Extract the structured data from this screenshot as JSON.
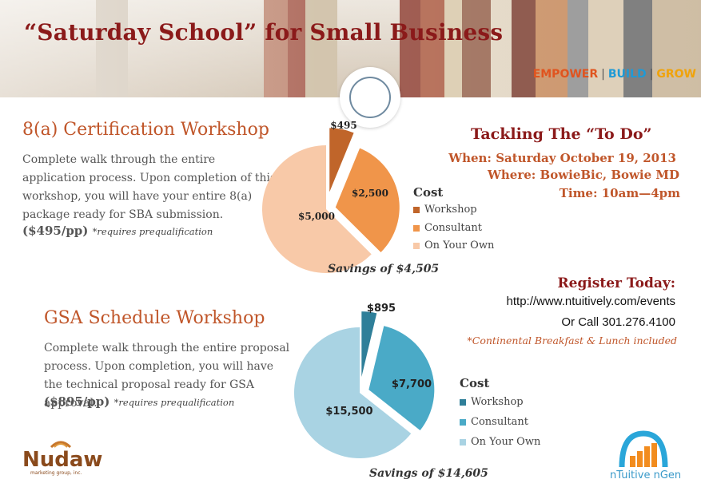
{
  "header": {
    "title": "“Saturday School” for Small Business",
    "tagline": {
      "empower": "EMPOWER",
      "build": "BUILD",
      "grow": "GROW",
      "sep": "|"
    },
    "colors": {
      "empower": "#e0541f",
      "build": "#1f9ad6",
      "grow": "#f0a30a"
    }
  },
  "workshop1": {
    "title": "8(a) Certification Workshop",
    "description": "Complete walk through the entire application process. Upon completion of this workshop, you will have your entire 8(a) package ready for SBA submission.",
    "price": "($495/pp)",
    "requirement": "*requires prequalification",
    "legend_title": "Cost",
    "savings": "Savings of $4,505"
  },
  "workshop2": {
    "title": "GSA Schedule Workshop",
    "description": "Complete walk through the entire proposal process. Upon completion, you will have the technical proposal ready for GSA approval.",
    "price": "($895/pp)",
    "requirement": "*requires prequalification",
    "legend_title": "Cost",
    "savings": "Savings of $14,605"
  },
  "event": {
    "title": "Tackling The “To Do”",
    "when": "When: Saturday October 19, 2013",
    "where": "Where: BowieBic, Bowie MD",
    "time": "Time: 10am—4pm"
  },
  "register": {
    "title": "Register Today:",
    "url": "http://www.ntuitively.com/events",
    "phone": "Or Call 301.276.4100",
    "note": "*Continental Breakfast & Lunch included"
  },
  "logos": {
    "left": "Nudawn",
    "left_sub": "marketing group, inc.",
    "right": "nTuitive nGen"
  },
  "chart_data": [
    {
      "type": "pie",
      "categories": [
        "Workshop",
        "Consultant",
        "On Your Own"
      ],
      "values": [
        495,
        2500,
        5000
      ],
      "labels": [
        "$495",
        "$2,500",
        "$5,000"
      ],
      "colors": [
        "#c0652a",
        "#f0954a",
        "#f8c9a8"
      ],
      "exploded": true,
      "legend_title": "Cost",
      "legend": "right"
    },
    {
      "type": "pie",
      "categories": [
        "Workshop",
        "Consultant",
        "On Your Own"
      ],
      "values": [
        895,
        7700,
        15500
      ],
      "labels": [
        "$895",
        "$7,700",
        "$15,500"
      ],
      "colors": [
        "#2f7f99",
        "#4aaac7",
        "#a9d3e3"
      ],
      "exploded": true,
      "legend_title": "Cost",
      "legend": "right"
    }
  ]
}
